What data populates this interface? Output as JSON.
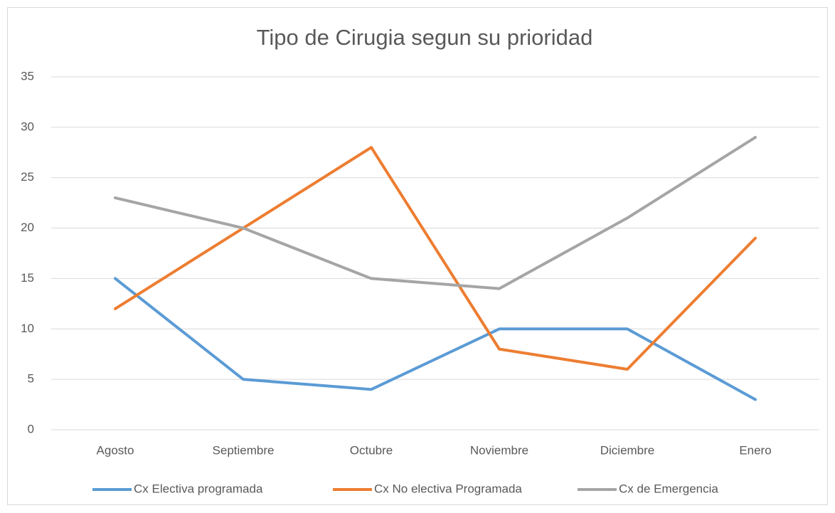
{
  "chart_data": {
    "type": "line",
    "title": "Tipo de Cirugia segun su prioridad",
    "categories": [
      "Agosto",
      "Septiembre",
      "Octubre",
      "Noviembre",
      "Diciembre",
      "Enero"
    ],
    "series": [
      {
        "name": "Cx Electiva programada",
        "color": "#5b9bd5",
        "values": [
          15,
          5,
          4,
          10,
          10,
          3
        ]
      },
      {
        "name": "Cx No electiva Programada",
        "color": "#ed7d31",
        "values": [
          12,
          20,
          28,
          8,
          6,
          19
        ]
      },
      {
        "name": "Cx de Emergencia",
        "color": "#a5a5a5",
        "values": [
          23,
          20,
          15,
          14,
          21,
          29
        ]
      }
    ],
    "ylim": [
      0,
      35
    ],
    "yticks": [
      0,
      5,
      10,
      15,
      20,
      25,
      30,
      35
    ],
    "grid": true,
    "legend": "bottom"
  }
}
